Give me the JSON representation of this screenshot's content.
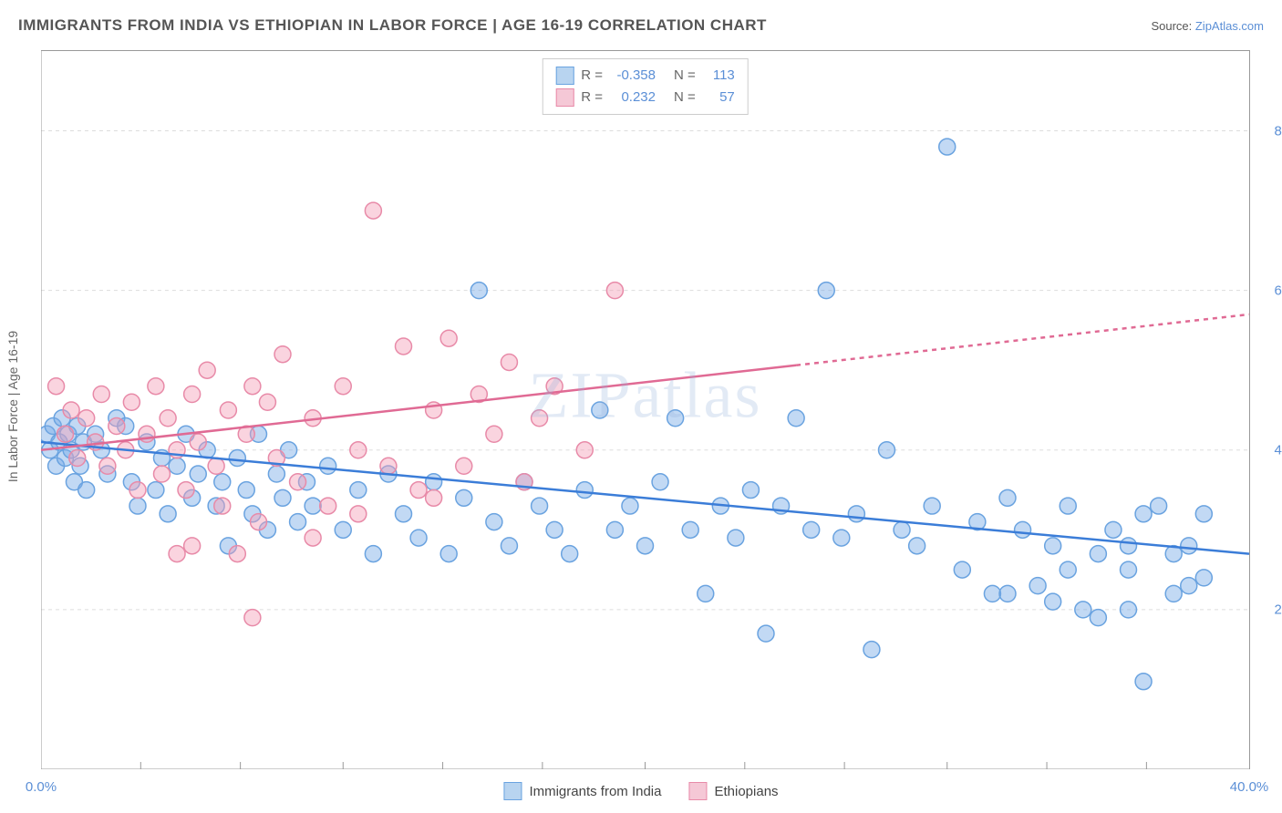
{
  "title": "IMMIGRANTS FROM INDIA VS ETHIOPIAN IN LABOR FORCE | AGE 16-19 CORRELATION CHART",
  "source_prefix": "Source: ",
  "source_link": "ZipAtlas.com",
  "y_axis_label": "In Labor Force | Age 16-19",
  "watermark": "ZIPatlas",
  "chart": {
    "type": "scatter",
    "xlim": [
      0,
      40
    ],
    "ylim": [
      0,
      90
    ],
    "x_ticks": [
      0,
      40
    ],
    "y_ticks": [
      20,
      40,
      60,
      80
    ],
    "x_tick_fmt": [
      "0.0%",
      "40.0%"
    ],
    "y_tick_fmt": [
      "20.0%",
      "40.0%",
      "60.0%",
      "80.0%"
    ],
    "x_minor_ticks": [
      3.3,
      6.6,
      10,
      13.3,
      16.6,
      20,
      23.3,
      26.6,
      30,
      33.3,
      36.6
    ],
    "grid_y": [
      20,
      40,
      60,
      80
    ],
    "grid_color": "#dddddd",
    "axis_color": "#999999",
    "background_color": "#ffffff",
    "marker_radius": 9,
    "marker_stroke_width": 1.5,
    "trend_line_width": 2.5,
    "label_fontsize": 14,
    "tick_fontsize": 15,
    "tick_color": "#5b8fd6"
  },
  "series": [
    {
      "name": "Immigrants from India",
      "fill": "rgba(120,170,230,0.45)",
      "stroke": "#6aa3e0",
      "swatch_fill": "#b8d4f0",
      "swatch_border": "#6aa3e0",
      "R_label": "R =",
      "R": "-0.358",
      "N_label": "N =",
      "N": "113",
      "trend": {
        "x1": 0,
        "y1": 41,
        "x2": 40,
        "y2": 27,
        "color": "#3b7dd8",
        "dash_from_x": null
      },
      "points": [
        [
          0.2,
          42
        ],
        [
          0.3,
          40
        ],
        [
          0.4,
          43
        ],
        [
          0.5,
          38
        ],
        [
          0.6,
          41
        ],
        [
          0.7,
          44
        ],
        [
          0.8,
          39
        ],
        [
          0.9,
          42
        ],
        [
          1.0,
          40
        ],
        [
          1.1,
          36
        ],
        [
          1.2,
          43
        ],
        [
          1.3,
          38
        ],
        [
          1.4,
          41
        ],
        [
          1.5,
          35
        ],
        [
          1.8,
          42
        ],
        [
          2.0,
          40
        ],
        [
          2.2,
          37
        ],
        [
          2.5,
          44
        ],
        [
          2.8,
          43
        ],
        [
          3.0,
          36
        ],
        [
          3.2,
          33
        ],
        [
          3.5,
          41
        ],
        [
          3.8,
          35
        ],
        [
          4.0,
          39
        ],
        [
          4.2,
          32
        ],
        [
          4.5,
          38
        ],
        [
          4.8,
          42
        ],
        [
          5.0,
          34
        ],
        [
          5.2,
          37
        ],
        [
          5.5,
          40
        ],
        [
          5.8,
          33
        ],
        [
          6.0,
          36
        ],
        [
          6.2,
          28
        ],
        [
          6.5,
          39
        ],
        [
          6.8,
          35
        ],
        [
          7.0,
          32
        ],
        [
          7.2,
          42
        ],
        [
          7.5,
          30
        ],
        [
          7.8,
          37
        ],
        [
          8.0,
          34
        ],
        [
          8.2,
          40
        ],
        [
          8.5,
          31
        ],
        [
          8.8,
          36
        ],
        [
          9.0,
          33
        ],
        [
          9.5,
          38
        ],
        [
          10.0,
          30
        ],
        [
          10.5,
          35
        ],
        [
          11.0,
          27
        ],
        [
          11.5,
          37
        ],
        [
          12.0,
          32
        ],
        [
          12.5,
          29
        ],
        [
          13.0,
          36
        ],
        [
          13.5,
          27
        ],
        [
          14.0,
          34
        ],
        [
          14.5,
          60
        ],
        [
          15.0,
          31
        ],
        [
          15.5,
          28
        ],
        [
          16.0,
          36
        ],
        [
          16.5,
          33
        ],
        [
          17.0,
          30
        ],
        [
          17.5,
          27
        ],
        [
          18.0,
          35
        ],
        [
          18.5,
          45
        ],
        [
          19.0,
          30
        ],
        [
          19.5,
          33
        ],
        [
          20.0,
          28
        ],
        [
          20.5,
          36
        ],
        [
          21.0,
          44
        ],
        [
          21.5,
          30
        ],
        [
          22.0,
          22
        ],
        [
          22.5,
          33
        ],
        [
          23.0,
          29
        ],
        [
          23.5,
          35
        ],
        [
          24.0,
          17
        ],
        [
          24.5,
          33
        ],
        [
          25.0,
          44
        ],
        [
          25.5,
          30
        ],
        [
          26.0,
          60
        ],
        [
          26.5,
          29
        ],
        [
          27.0,
          32
        ],
        [
          27.5,
          15
        ],
        [
          28.0,
          40
        ],
        [
          28.5,
          30
        ],
        [
          29.0,
          28
        ],
        [
          29.5,
          33
        ],
        [
          30.0,
          78
        ],
        [
          30.5,
          25
        ],
        [
          31.0,
          31
        ],
        [
          31.5,
          22
        ],
        [
          32.0,
          34
        ],
        [
          32.5,
          30
        ],
        [
          33.0,
          23
        ],
        [
          33.5,
          28
        ],
        [
          34.0,
          33
        ],
        [
          34.5,
          20
        ],
        [
          35.0,
          27
        ],
        [
          35.5,
          30
        ],
        [
          36.0,
          25
        ],
        [
          36.5,
          11
        ],
        [
          37.0,
          33
        ],
        [
          37.5,
          22
        ],
        [
          38.0,
          28
        ],
        [
          38.5,
          24
        ],
        [
          32.0,
          22
        ],
        [
          33.5,
          21
        ],
        [
          34.0,
          25
        ],
        [
          35.0,
          19
        ],
        [
          36.0,
          28
        ],
        [
          36.5,
          32
        ],
        [
          37.5,
          27
        ],
        [
          38.0,
          23
        ],
        [
          38.5,
          32
        ],
        [
          36.0,
          20
        ]
      ]
    },
    {
      "name": "Ethiopians",
      "fill": "rgba(245,160,185,0.45)",
      "stroke": "#e88aa8",
      "swatch_fill": "#f5c8d6",
      "swatch_border": "#e88aa8",
      "R_label": "R =",
      "R": "0.232",
      "N_label": "N =",
      "N": "57",
      "trend": {
        "x1": 0,
        "y1": 40,
        "x2": 40,
        "y2": 57,
        "color": "#e06a94",
        "dash_from_x": 25
      },
      "points": [
        [
          0.5,
          48
        ],
        [
          0.8,
          42
        ],
        [
          1.0,
          45
        ],
        [
          1.2,
          39
        ],
        [
          1.5,
          44
        ],
        [
          1.8,
          41
        ],
        [
          2.0,
          47
        ],
        [
          2.2,
          38
        ],
        [
          2.5,
          43
        ],
        [
          2.8,
          40
        ],
        [
          3.0,
          46
        ],
        [
          3.2,
          35
        ],
        [
          3.5,
          42
        ],
        [
          3.8,
          48
        ],
        [
          4.0,
          37
        ],
        [
          4.2,
          44
        ],
        [
          4.5,
          40
        ],
        [
          4.8,
          35
        ],
        [
          5.0,
          47
        ],
        [
          5.2,
          41
        ],
        [
          5.5,
          50
        ],
        [
          5.8,
          38
        ],
        [
          6.0,
          33
        ],
        [
          6.2,
          45
        ],
        [
          6.5,
          27
        ],
        [
          6.8,
          42
        ],
        [
          7.0,
          48
        ],
        [
          7.2,
          31
        ],
        [
          7.5,
          46
        ],
        [
          7.8,
          39
        ],
        [
          8.0,
          52
        ],
        [
          8.5,
          36
        ],
        [
          9.0,
          44
        ],
        [
          9.5,
          33
        ],
        [
          10.0,
          48
        ],
        [
          10.5,
          40
        ],
        [
          11.0,
          70
        ],
        [
          11.5,
          38
        ],
        [
          12.0,
          53
        ],
        [
          12.5,
          35
        ],
        [
          13.0,
          45
        ],
        [
          13.5,
          54
        ],
        [
          14.0,
          38
        ],
        [
          14.5,
          47
        ],
        [
          15.0,
          42
        ],
        [
          15.5,
          51
        ],
        [
          16.0,
          36
        ],
        [
          17.0,
          48
        ],
        [
          18.0,
          40
        ],
        [
          19.0,
          60
        ],
        [
          7.0,
          19
        ],
        [
          4.5,
          27
        ],
        [
          5.0,
          28
        ],
        [
          9.0,
          29
        ],
        [
          10.5,
          32
        ],
        [
          13.0,
          34
        ],
        [
          16.5,
          44
        ]
      ]
    }
  ]
}
